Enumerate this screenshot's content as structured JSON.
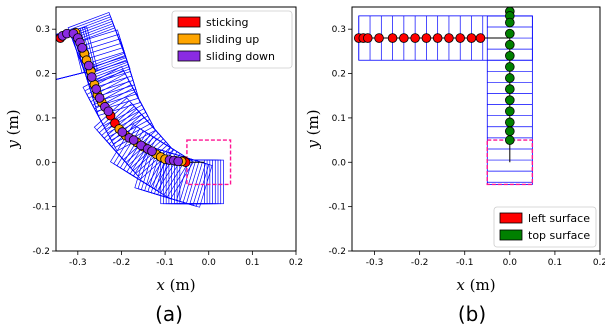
{
  "chart_data": [
    {
      "type": "scatter",
      "caption": "(a)",
      "xlabel_var": "x",
      "ylabel_var": "y",
      "xlabel_unit": " (m)",
      "ylabel_unit": " (m)",
      "xlim": [
        -0.35,
        0.2
      ],
      "ylim": [
        -0.2,
        0.35
      ],
      "xticks": [
        "-0.3",
        "-0.2",
        "-0.1",
        "0.0",
        "0.1",
        "0.2"
      ],
      "yticks": [
        "-0.2",
        "-0.1",
        "0.0",
        "0.1",
        "0.2",
        "0.3"
      ],
      "xtick_values": [
        -0.3,
        -0.2,
        -0.1,
        0.0,
        0.1,
        0.2
      ],
      "ytick_values": [
        -0.2,
        -0.1,
        0.0,
        0.1,
        0.2,
        0.3
      ],
      "legend_placement": "top-right",
      "target_box": {
        "x": [
          -0.05,
          0.05
        ],
        "y": [
          -0.05,
          0.05
        ]
      },
      "series": [
        {
          "name": "sticking",
          "color": "#ff0000",
          "points": [
            [
              -0.34,
              0.28
            ],
            [
              -0.225,
              0.105
            ],
            [
              -0.215,
              0.088
            ],
            [
              -0.057,
              0.003
            ],
            [
              -0.053,
              0.0
            ]
          ]
        },
        {
          "name": "sliding up",
          "color": "#ffa500",
          "points": [
            [
              -0.305,
              0.292
            ],
            [
              -0.285,
              0.245
            ],
            [
              -0.28,
              0.23
            ],
            [
              -0.27,
              0.205
            ],
            [
              -0.262,
              0.175
            ],
            [
              -0.255,
              0.152
            ],
            [
              -0.245,
              0.135
            ],
            [
              -0.205,
              0.075
            ],
            [
              -0.19,
              0.06
            ],
            [
              -0.165,
              0.045
            ],
            [
              -0.15,
              0.035
            ],
            [
              -0.12,
              0.018
            ],
            [
              -0.11,
              0.012
            ],
            [
              -0.1,
              0.007
            ],
            [
              -0.075,
              0.003
            ],
            [
              -0.062,
              0.002
            ]
          ]
        },
        {
          "name": "sliding down",
          "color": "#8a2be2",
          "points": [
            [
              -0.335,
              0.285
            ],
            [
              -0.325,
              0.29
            ],
            [
              -0.31,
              0.29
            ],
            [
              -0.3,
              0.28
            ],
            [
              -0.295,
              0.27
            ],
            [
              -0.29,
              0.258
            ],
            [
              -0.275,
              0.218
            ],
            [
              -0.268,
              0.192
            ],
            [
              -0.258,
              0.165
            ],
            [
              -0.25,
              0.145
            ],
            [
              -0.238,
              0.125
            ],
            [
              -0.23,
              0.115
            ],
            [
              -0.198,
              0.068
            ],
            [
              -0.182,
              0.055
            ],
            [
              -0.172,
              0.05
            ],
            [
              -0.155,
              0.038
            ],
            [
              -0.14,
              0.03
            ],
            [
              -0.13,
              0.025
            ],
            [
              -0.09,
              0.005
            ],
            [
              -0.08,
              0.004
            ],
            [
              -0.07,
              0.002
            ]
          ]
        }
      ],
      "path": [
        [
          -0.34,
          0.28
        ],
        [
          -0.3,
          0.29
        ],
        [
          -0.285,
          0.25
        ],
        [
          -0.26,
          0.17
        ],
        [
          -0.225,
          0.105
        ],
        [
          -0.18,
          0.055
        ],
        [
          -0.12,
          0.018
        ],
        [
          -0.06,
          0.0
        ],
        [
          -0.01,
          0.0
        ]
      ]
    },
    {
      "type": "scatter",
      "caption": "(b)",
      "xlabel_var": "x",
      "ylabel_var": "y",
      "xlabel_unit": " (m)",
      "ylabel_unit": " (m)",
      "xlim": [
        -0.35,
        0.2
      ],
      "ylim": [
        -0.2,
        0.35
      ],
      "xticks": [
        "-0.3",
        "-0.2",
        "-0.1",
        "0.0",
        "0.1",
        "0.2"
      ],
      "yticks": [
        "-0.2",
        "-0.1",
        "0.0",
        "0.1",
        "0.2",
        "0.3"
      ],
      "xtick_values": [
        -0.3,
        -0.2,
        -0.1,
        0.0,
        0.1,
        0.2
      ],
      "ytick_values": [
        -0.2,
        -0.1,
        0.0,
        0.1,
        0.2,
        0.3
      ],
      "legend_placement": "bottom-right",
      "target_box": {
        "x": [
          -0.05,
          0.05
        ],
        "y": [
          -0.05,
          0.05
        ]
      },
      "series": [
        {
          "name": "left surface",
          "color": "#ff0000",
          "points": [
            [
              -0.335,
              0.28
            ],
            [
              -0.325,
              0.28
            ],
            [
              -0.315,
              0.28
            ],
            [
              -0.29,
              0.28
            ],
            [
              -0.26,
              0.28
            ],
            [
              -0.235,
              0.28
            ],
            [
              -0.21,
              0.28
            ],
            [
              -0.185,
              0.28
            ],
            [
              -0.16,
              0.28
            ],
            [
              -0.135,
              0.28
            ],
            [
              -0.11,
              0.28
            ],
            [
              -0.085,
              0.28
            ],
            [
              -0.065,
              0.28
            ]
          ]
        },
        {
          "name": "top surface",
          "color": "#008000",
          "points": [
            [
              0.0,
              0.34
            ],
            [
              0.0,
              0.33
            ],
            [
              0.0,
              0.315
            ],
            [
              0.0,
              0.29
            ],
            [
              0.0,
              0.265
            ],
            [
              0.0,
              0.24
            ],
            [
              0.0,
              0.215
            ],
            [
              0.0,
              0.19
            ],
            [
              0.0,
              0.165
            ],
            [
              0.0,
              0.14
            ],
            [
              0.0,
              0.115
            ],
            [
              0.0,
              0.09
            ],
            [
              0.0,
              0.07
            ],
            [
              0.0,
              0.05
            ]
          ]
        }
      ],
      "path": [
        [
          -0.335,
          0.28
        ],
        [
          0.0,
          0.28
        ],
        [
          0.0,
          0.0
        ]
      ]
    }
  ]
}
